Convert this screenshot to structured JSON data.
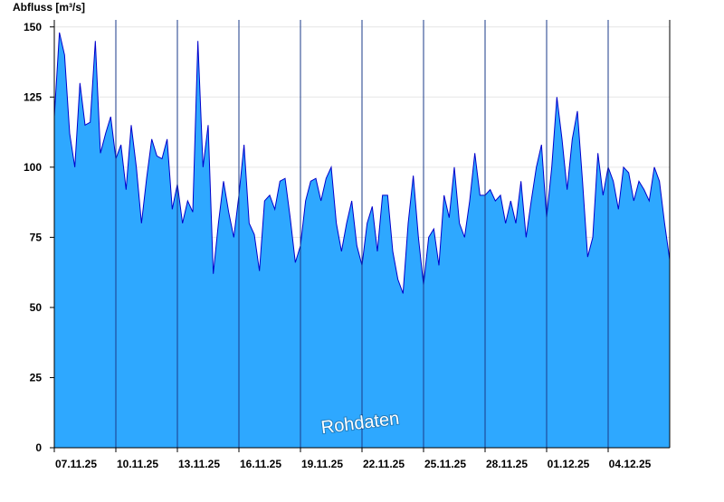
{
  "chart_data": {
    "type": "area",
    "y_label": "Abfluss [m³/s]",
    "annotation": "Rohdaten",
    "xlim": [
      0,
      30
    ],
    "xticks": [
      {
        "value": 0,
        "label": "07.11.25"
      },
      {
        "value": 3,
        "label": "10.11.25"
      },
      {
        "value": 6,
        "label": "13.11.25"
      },
      {
        "value": 9,
        "label": "16.11.25"
      },
      {
        "value": 12,
        "label": "19.11.25"
      },
      {
        "value": 15,
        "label": "22.11.25"
      },
      {
        "value": 18,
        "label": "25.11.25"
      },
      {
        "value": 21,
        "label": "28.11.25"
      },
      {
        "value": 24,
        "label": "01.12.25"
      },
      {
        "value": 27,
        "label": "04.12.25"
      }
    ],
    "ylim": [
      0,
      152.5
    ],
    "yticks": [
      0,
      25,
      50,
      75,
      100,
      125,
      150
    ],
    "grid": true,
    "x": [
      0,
      0.25,
      0.5,
      0.75,
      1,
      1.25,
      1.5,
      1.75,
      2,
      2.25,
      2.5,
      2.75,
      3,
      3.25,
      3.5,
      3.75,
      4,
      4.25,
      4.5,
      4.75,
      5,
      5.25,
      5.5,
      5.75,
      6,
      6.25,
      6.5,
      6.75,
      7,
      7.25,
      7.5,
      7.75,
      8,
      8.25,
      8.5,
      8.75,
      9,
      9.25,
      9.5,
      9.75,
      10,
      10.25,
      10.5,
      10.75,
      11,
      11.25,
      11.5,
      11.75,
      12,
      12.25,
      12.5,
      12.75,
      13,
      13.25,
      13.5,
      13.75,
      14,
      14.25,
      14.5,
      14.75,
      15,
      15.25,
      15.5,
      15.75,
      16,
      16.25,
      16.5,
      16.75,
      17,
      17.25,
      17.5,
      17.75,
      18,
      18.25,
      18.5,
      18.75,
      19,
      19.25,
      19.5,
      19.75,
      20,
      20.25,
      20.5,
      20.75,
      21,
      21.25,
      21.5,
      21.75,
      22,
      22.25,
      22.5,
      22.75,
      23,
      23.25,
      23.5,
      23.75,
      24,
      24.25,
      24.5,
      24.75,
      25,
      25.25,
      25.5,
      25.75,
      26,
      26.25,
      26.5,
      26.75,
      27,
      27.25,
      27.5,
      27.75,
      28,
      28.25,
      28.5,
      28.75,
      29,
      29.25,
      29.5,
      29.75,
      30
    ],
    "series": [
      {
        "color": "#2ea8ff",
        "line_color": "#0000cc",
        "values": [
          118,
          148,
          140,
          112,
          100,
          130,
          115,
          116,
          145,
          105,
          112,
          118,
          103,
          108,
          92,
          115,
          100,
          80,
          96,
          110,
          104,
          103,
          110,
          85,
          94,
          80,
          88,
          84,
          145,
          100,
          115,
          62,
          80,
          95,
          84,
          75,
          90,
          108,
          80,
          76,
          63,
          88,
          90,
          85,
          95,
          96,
          82,
          66,
          72,
          88,
          95,
          96,
          88,
          96,
          100,
          80,
          70,
          80,
          88,
          72,
          65,
          80,
          86,
          70,
          90,
          90,
          70,
          60,
          55,
          80,
          97,
          75,
          58,
          75,
          78,
          65,
          90,
          82,
          100,
          80,
          75,
          88,
          105,
          90,
          90,
          92,
          88,
          90,
          80,
          88,
          80,
          95,
          75,
          88,
          100,
          108,
          82,
          100,
          125,
          110,
          92,
          110,
          120,
          95,
          68,
          75,
          105,
          90,
          100,
          95,
          85,
          100,
          98,
          88,
          95,
          92,
          88,
          100,
          95,
          80,
          67
        ]
      }
    ]
  }
}
